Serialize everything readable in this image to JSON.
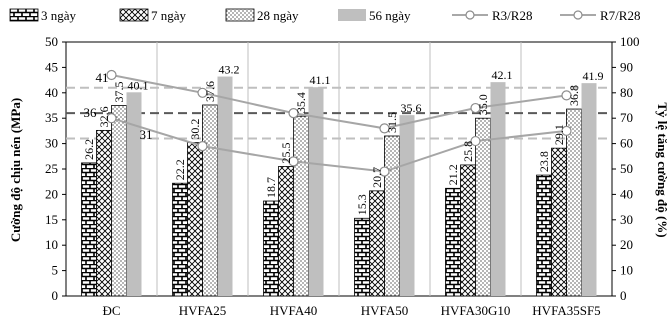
{
  "chart_data": {
    "type": "bar",
    "categories": [
      "ĐC",
      "HVFA25",
      "HVFA40",
      "HVFA50",
      "HVFA30G10",
      "HVFA35SF5"
    ],
    "series": [
      {
        "name": "3 ngày",
        "values": [
          26.2,
          22.2,
          18.7,
          15.3,
          21.2,
          23.8
        ],
        "labels": [
          "26.2",
          "22.2",
          "18.7",
          "15.3",
          "21.2",
          "23.8"
        ],
        "pattern": "brick"
      },
      {
        "name": "7 ngày",
        "values": [
          32.6,
          30.2,
          25.5,
          20.7,
          25.8,
          29.1
        ],
        "labels": [
          "32.6",
          "30.2",
          "25.5",
          "20.7",
          "25.8",
          "29.1"
        ],
        "pattern": "crosshatch"
      },
      {
        "name": "28 ngày",
        "values": [
          37.5,
          37.6,
          35.4,
          31.5,
          35.0,
          36.8
        ],
        "labels": [
          "37.5",
          "37.6",
          "35.4",
          "31.5",
          "35.0",
          "36.8"
        ],
        "pattern": "dots"
      },
      {
        "name": "56 ngày",
        "values": [
          40.1,
          43.2,
          41.1,
          35.6,
          42.1,
          41.9
        ],
        "labels": [
          "40.1",
          "43.2",
          "41.1",
          "35.6",
          "42.1",
          "41.9"
        ],
        "pattern": "solid-gray"
      }
    ],
    "ratio_series": [
      {
        "name": "R3/R28",
        "values": [
          70,
          59,
          53,
          49,
          61,
          65
        ]
      },
      {
        "name": "R7/R28",
        "values": [
          87,
          80,
          72,
          66,
          74,
          79
        ]
      }
    ],
    "point_labels": [
      {
        "text": "36",
        "value": 36
      },
      {
        "text": "41",
        "value": 41
      },
      {
        "text": "31",
        "value": 31
      }
    ],
    "reference_lines": [
      {
        "value": 72,
        "style": "dashed-dark"
      },
      {
        "value": 82,
        "style": "dashed-light"
      },
      {
        "value": 62,
        "style": "dashed-light"
      }
    ],
    "ylabel": "Cường độ chịu nén (MPa)",
    "y2label": "Tỷ lệ tăng cường độ (%)",
    "ylim": [
      0,
      50
    ],
    "y2lim": [
      0,
      100
    ],
    "yticks": [
      0,
      5,
      10,
      15,
      20,
      25,
      30,
      35,
      40,
      45,
      50
    ],
    "y2ticks": [
      "0",
      "10",
      "20",
      "30",
      "40",
      "50",
      "60",
      "70",
      "80",
      "90",
      "100"
    ],
    "legend_position": "top",
    "grid": "vertical-separators"
  },
  "colors": {
    "bar_outline": "#000000",
    "bar_56": "#bfbfbf",
    "line_r3": "#a6a6a6",
    "line_r7": "#a6a6a6",
    "ref_dark": "#595959",
    "ref_light": "#bfbfbf",
    "axis": "#000000"
  }
}
